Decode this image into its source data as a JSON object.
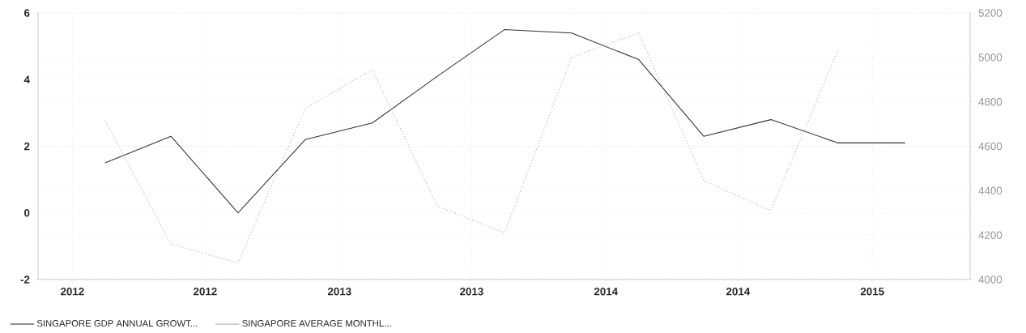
{
  "chart_data": {
    "type": "line",
    "x": [
      "2012-02-15",
      "2012-05-15",
      "2012-08-15",
      "2012-11-15",
      "2013-02-15",
      "2013-05-15",
      "2013-08-15",
      "2013-11-15",
      "2014-02-15",
      "2014-05-15",
      "2014-08-15",
      "2014-11-15",
      "2015-02-15"
    ],
    "series": [
      {
        "name": "SINGAPORE GDP ANNUAL GROWT...",
        "color": "#333333",
        "line_style": "solid",
        "values": [
          1.5,
          2.3,
          0,
          2.2,
          2.7,
          4.1,
          5.5,
          5.4,
          4.6,
          2.3,
          2.8,
          2.1,
          2.1
        ]
      },
      {
        "name": "SINGAPORE AVERAGE MONTHL...",
        "color": "#aaaaaa",
        "line_style": "dotted",
        "axis": "y2",
        "values": [
          4715,
          4160,
          4075,
          4770,
          4945,
          4330,
          4210,
          5000,
          5110,
          4445,
          4310,
          5035,
          null
        ]
      }
    ],
    "xlim": [
      "2011-11-15",
      "2015-05-15"
    ],
    "xticks": [
      {
        "value": "2012-01-01",
        "label": "2012"
      },
      {
        "value": "2012-07-01",
        "label": "2012"
      },
      {
        "value": "2013-01-01",
        "label": "2013"
      },
      {
        "value": "2013-07-01",
        "label": "2013"
      },
      {
        "value": "2014-01-01",
        "label": "2014"
      },
      {
        "value": "2014-07-01",
        "label": "2014"
      },
      {
        "value": "2015-01-01",
        "label": "2015"
      }
    ],
    "ylim": [
      -2,
      6
    ],
    "yticks": [
      -2,
      0,
      2,
      4,
      6
    ],
    "y2lim": [
      4000,
      5200
    ],
    "y2ticks": [
      4000,
      4200,
      4400,
      4600,
      4800,
      5000,
      5200
    ],
    "grid": true,
    "legend": "bottom left"
  }
}
